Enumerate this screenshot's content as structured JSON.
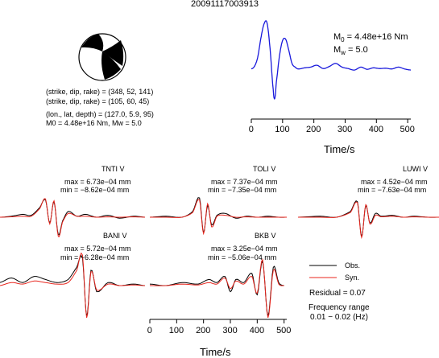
{
  "title": "20091117003913",
  "focal": {
    "line1": "(strike, dip, rake) = (348, 52, 141)",
    "line2": "(strike, dip, rake) = (105, 60, 45)",
    "line3": "(lon., lat, depth) = (127.0, 5.9, 95)",
    "line4": "M0 = 4.48e+16 Nm, Mw = 5.0"
  },
  "stf": {
    "m0_sym": "M",
    "m0_sub": "0",
    "m0_val": " = 4.48e+16 Nm",
    "mw_sym": "M",
    "mw_sub": "w",
    "mw_val": " = 5.0",
    "xlabel": "Time/s",
    "xticks": [
      "0",
      "100",
      "200",
      "300",
      "400",
      "500"
    ]
  },
  "stations": [
    {
      "name": "TNTI V",
      "max": "max = 6.73e−04 mm",
      "min": "min = −8.62e−04 mm"
    },
    {
      "name": "TOLI V",
      "max": "max = 7.37e−04 mm",
      "min": "min = −7.35e−04 mm"
    },
    {
      "name": "LUWI V",
      "max": "max = 4.52e−04 mm",
      "min": "min = −7.63e−04 mm"
    },
    {
      "name": "BANI V",
      "max": "max = 5.72e−04 mm",
      "min": "min = −6.28e−04 mm"
    },
    {
      "name": "BKB V",
      "max": "max = 3.25e−04 mm",
      "min": "min = −5.06e−04 mm"
    }
  ],
  "legend": {
    "obs": "Obs.",
    "syn": "Syn.",
    "residual": "Residual = 0.07",
    "freq1": "Frequency range",
    "freq2": "0.01 − 0.02 (Hz)"
  },
  "bottom_axis": {
    "xlabel": "Time/s",
    "xticks": [
      "0",
      "100",
      "200",
      "300",
      "400",
      "500"
    ]
  },
  "colors": {
    "obs": "#000000",
    "syn": "#e8261e",
    "stf": "#1a1adc"
  },
  "chart_data": [
    {
      "type": "line",
      "name": "source time function",
      "xlabel": "Time/s",
      "xlim": [
        0,
        510
      ],
      "x": [
        0,
        10,
        20,
        30,
        40,
        50,
        60,
        70,
        75,
        80,
        90,
        100,
        110,
        120,
        130,
        140,
        150,
        170,
        190,
        210,
        230,
        250,
        270,
        290,
        310,
        330,
        350,
        370,
        390,
        410,
        430,
        450,
        470,
        490,
        510
      ],
      "y": [
        0.05,
        0.12,
        0.35,
        0.85,
        1.25,
        1.3,
        0.6,
        -0.5,
        -0.75,
        -0.3,
        0.4,
        0.82,
        0.85,
        0.55,
        0.2,
        0.1,
        0.05,
        0.08,
        0.1,
        0.15,
        0.06,
        0.12,
        0.2,
        0.1,
        0.06,
        0.02,
        0.1,
        0.04,
        0.08,
        0.06,
        0.07,
        0.05,
        0.1,
        0.05,
        0.02
      ]
    },
    {
      "type": "line",
      "station": "TNTI V",
      "series": [
        {
          "name": "Obs.",
          "x": [
            0,
            40,
            80,
            110,
            140,
            160,
            175,
            190,
            205,
            220,
            240,
            270,
            300,
            340,
            380,
            420,
            470,
            510
          ],
          "y": [
            0.0,
            0.05,
            0.15,
            0.1,
            0.5,
            0.9,
            -0.3,
            0.8,
            -0.9,
            -0.2,
            0.3,
            0.05,
            0.15,
            0.0,
            0.1,
            -0.05,
            0.05,
            0.0
          ]
        },
        {
          "name": "Syn.",
          "x": [
            0,
            40,
            80,
            110,
            140,
            160,
            175,
            190,
            205,
            220,
            240,
            270,
            300,
            340,
            380,
            420,
            470,
            510
          ],
          "y": [
            0.0,
            0.02,
            0.05,
            0.05,
            0.45,
            0.95,
            -0.35,
            0.85,
            -1.0,
            -0.25,
            0.2,
            0.05,
            0.05,
            0.0,
            0.02,
            0.0,
            0.02,
            0.0
          ]
        }
      ]
    },
    {
      "type": "line",
      "station": "TOLI V",
      "series": [
        {
          "name": "Obs.",
          "x": [
            0,
            60,
            120,
            160,
            185,
            200,
            215,
            230,
            250,
            280,
            320,
            360,
            400,
            440,
            480,
            510
          ],
          "y": [
            0.0,
            0.05,
            0.0,
            0.3,
            1.0,
            -0.8,
            0.6,
            -0.4,
            0.1,
            0.2,
            -0.05,
            0.05,
            0.0,
            0.05,
            0.0,
            0.0
          ]
        },
        {
          "name": "Syn.",
          "x": [
            0,
            60,
            120,
            160,
            185,
            200,
            215,
            230,
            250,
            280,
            320,
            360,
            400,
            440,
            480,
            510
          ],
          "y": [
            0.0,
            0.0,
            0.0,
            0.25,
            0.9,
            -0.85,
            0.7,
            -0.5,
            0.05,
            0.1,
            0.0,
            0.02,
            0.0,
            0.0,
            0.0,
            0.0
          ]
        }
      ]
    },
    {
      "type": "line",
      "station": "LUWI V",
      "series": [
        {
          "name": "Obs.",
          "x": [
            0,
            80,
            140,
            190,
            215,
            230,
            245,
            260,
            280,
            300,
            340,
            380,
            420,
            470,
            510
          ],
          "y": [
            0.0,
            0.05,
            0.0,
            0.3,
            0.8,
            -1.0,
            0.6,
            -0.3,
            0.2,
            0.05,
            0.1,
            0.0,
            0.05,
            0.0,
            0.0
          ]
        },
        {
          "name": "Syn.",
          "x": [
            0,
            80,
            140,
            190,
            215,
            230,
            245,
            260,
            280,
            300,
            340,
            380,
            420,
            470,
            510
          ],
          "y": [
            0.0,
            0.0,
            0.0,
            0.25,
            0.75,
            -1.05,
            0.65,
            -0.35,
            0.1,
            0.02,
            0.05,
            0.0,
            0.02,
            0.0,
            0.0
          ]
        }
      ]
    },
    {
      "type": "line",
      "station": "BANI V",
      "series": [
        {
          "name": "Obs.",
          "x": [
            0,
            40,
            80,
            120,
            160,
            200,
            240,
            270,
            290,
            305,
            320,
            340,
            380,
            420,
            470,
            510
          ],
          "y": [
            0.1,
            0.25,
            0.1,
            0.3,
            0.2,
            0.1,
            0.2,
            0.6,
            0.9,
            -1.0,
            0.5,
            -0.2,
            0.1,
            0.0,
            0.05,
            0.0
          ]
        },
        {
          "name": "Syn.",
          "x": [
            0,
            40,
            80,
            120,
            160,
            200,
            240,
            270,
            290,
            305,
            320,
            340,
            380,
            420,
            470,
            510
          ],
          "y": [
            0.0,
            0.1,
            0.05,
            0.15,
            0.1,
            0.05,
            0.1,
            0.5,
            1.0,
            -1.05,
            0.45,
            -0.15,
            0.05,
            0.0,
            0.02,
            0.0
          ]
        }
      ]
    },
    {
      "type": "line",
      "station": "BKB V",
      "xlim": [
        0,
        510
      ],
      "series": [
        {
          "name": "Obs.",
          "x": [
            0,
            60,
            120,
            180,
            220,
            250,
            280,
            300,
            320,
            350,
            380,
            400,
            420,
            440,
            460,
            480,
            500
          ],
          "y": [
            0.05,
            0.0,
            0.1,
            0.05,
            0.2,
            0.1,
            0.3,
            -0.2,
            0.2,
            0.1,
            0.4,
            -0.3,
            0.8,
            -1.0,
            0.6,
            0.1,
            0.0
          ]
        },
        {
          "name": "Syn.",
          "x": [
            0,
            60,
            120,
            180,
            220,
            250,
            280,
            300,
            320,
            350,
            380,
            400,
            420,
            440,
            460,
            480,
            500
          ],
          "y": [
            0.0,
            0.0,
            0.05,
            0.02,
            0.1,
            0.05,
            0.25,
            -0.1,
            0.15,
            0.05,
            0.3,
            -0.25,
            0.85,
            -1.05,
            0.5,
            0.05,
            0.0
          ]
        }
      ]
    }
  ]
}
